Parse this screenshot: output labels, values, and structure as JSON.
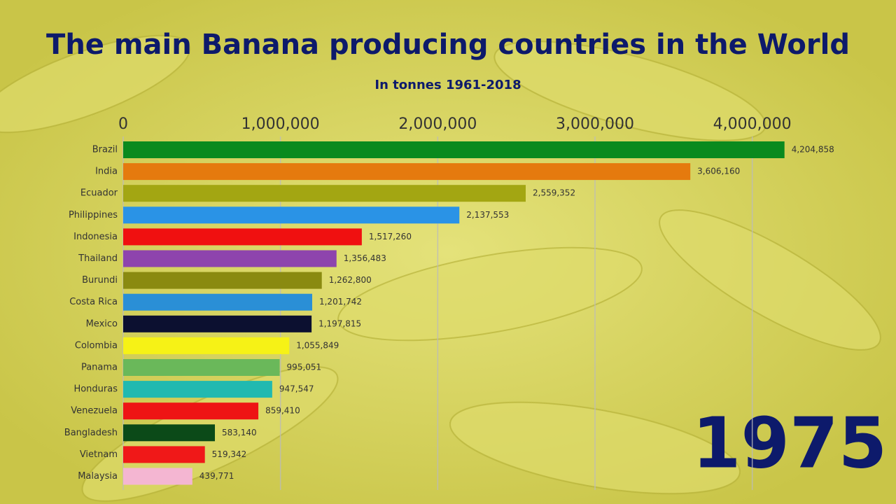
{
  "chart_data": {
    "type": "barh",
    "title": "The main Banana producing countries in the World",
    "subtitle": "In tonnes 1961-2018",
    "year_label": "1975",
    "categories": [
      "Brazil",
      "India",
      "Ecuador",
      "Philippines",
      "Indonesia",
      "Thailand",
      "Burundi",
      "Costa Rica",
      "Mexico",
      "Colombia",
      "Panama",
      "Honduras",
      "Venezuela",
      "Bangladesh",
      "Vietnam",
      "Malaysia"
    ],
    "values": [
      4204858,
      3606160,
      2559352,
      2137553,
      1517260,
      1356483,
      1262800,
      1201742,
      1197815,
      1055849,
      995051,
      947547,
      859410,
      583140,
      519342,
      439771
    ],
    "value_labels": [
      "4,204,858",
      "3,606,160",
      "2,559,352",
      "2,137,553",
      "1,517,260",
      "1,356,483",
      "1,262,800",
      "1,201,742",
      "1,197,815",
      "1,055,849",
      "995,051",
      "947,547",
      "859,410",
      "583,140",
      "519,342",
      "439,771"
    ],
    "colors": [
      "#0a8a1e",
      "#e57a0e",
      "#a3a612",
      "#2a93e6",
      "#f01010",
      "#8e44ad",
      "#8a8a10",
      "#2a8fd6",
      "#0c1030",
      "#f6f216",
      "#6ab85a",
      "#21b9b0",
      "#ee1414",
      "#0b4a18",
      "#f01818",
      "#f4b6d2"
    ],
    "xlim": [
      0,
      4500000
    ],
    "xticks": [
      0,
      {
        "value": 1000000,
        "label": "1,000,000"
      },
      {
        "value": 2000000,
        "label": "2,000,000"
      },
      {
        "value": 3000000,
        "label": "3,000,000"
      },
      {
        "value": 4000000,
        "label": "4,000,000"
      }
    ],
    "grid": true
  }
}
